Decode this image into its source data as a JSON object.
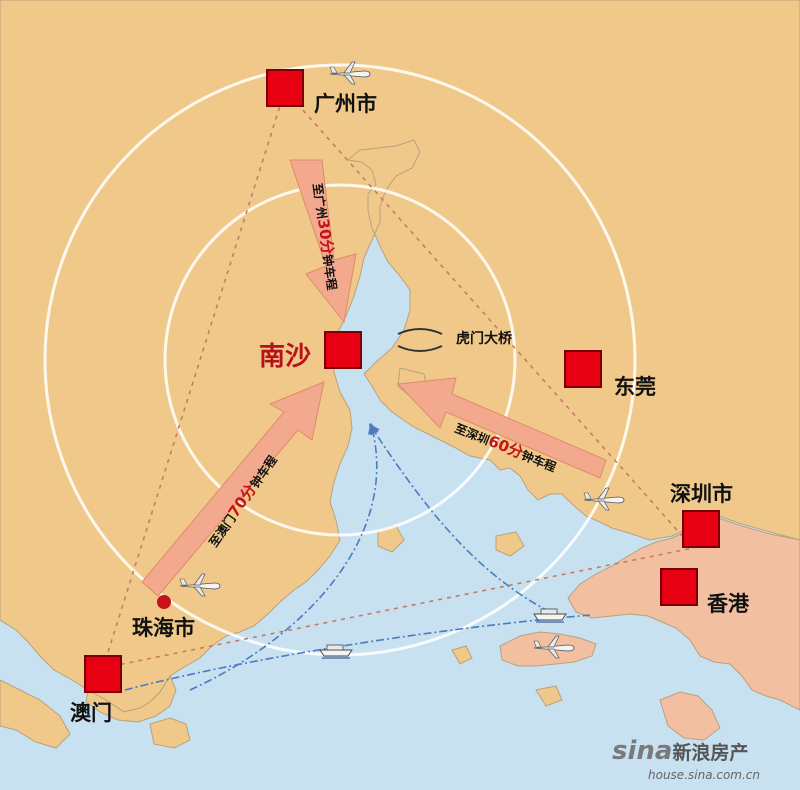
{
  "map": {
    "colors": {
      "land": "#f0c98a",
      "land_hk_area": "#f2bfa0",
      "water": "#c7e1f1",
      "city_marker": "#e60012",
      "route_arrow": "#f3a98d",
      "ring": "#ffffff",
      "sea_route": "#4d7ac0"
    },
    "cities": {
      "guangzhou": "广州市",
      "nansha": "南沙",
      "dongguan": "东莞",
      "shenzhen": "深圳市",
      "hongkong": "香港",
      "zhuhai": "珠海市",
      "macau": "澳门"
    },
    "bridge_label": "虎门大桥",
    "routes": {
      "guangzhou_drive": {
        "pre": "至广州",
        "time": "30分",
        "post": "钟车程"
      },
      "zhuhai_drive": {
        "pre": "至澳门",
        "time": "70分",
        "post": "钟车程"
      },
      "shenzhen_drive": {
        "pre": "至深圳",
        "time": "60分",
        "post": "钟车程"
      }
    },
    "icons": [
      "airplane-icon",
      "ferry-icon",
      "city-marker-icon"
    ],
    "watermark": {
      "brand": "sina",
      "brand_cn": "新浪房产",
      "url": "house.sina.com.cn"
    }
  }
}
